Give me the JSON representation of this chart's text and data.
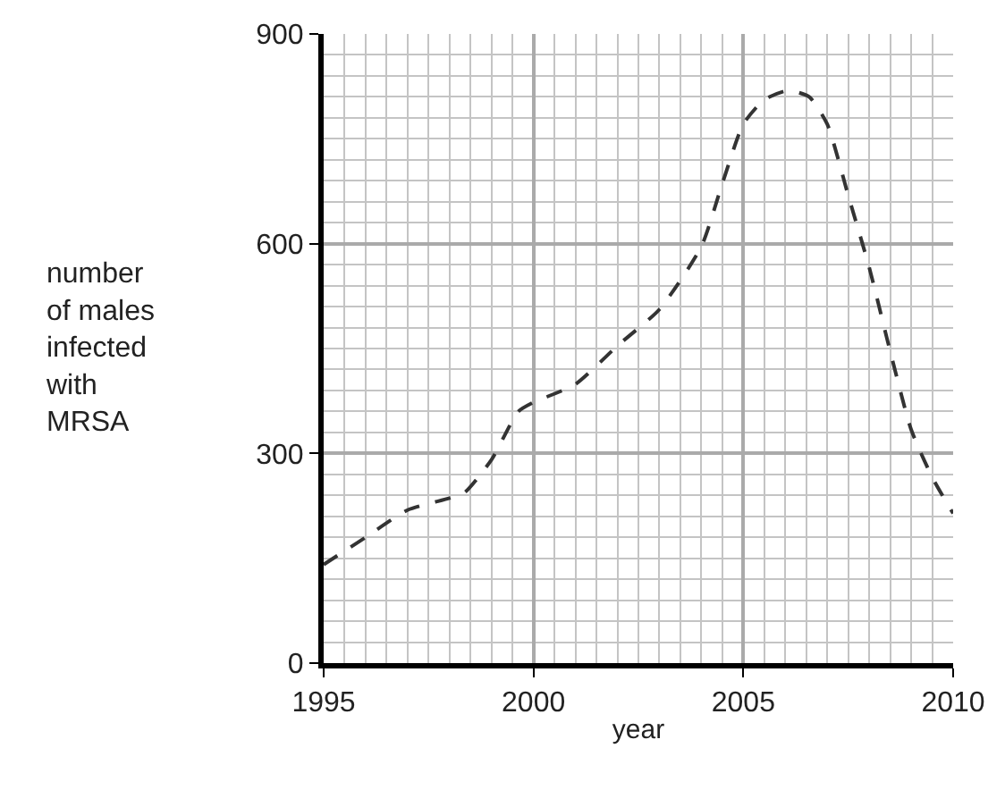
{
  "chart_data": {
    "type": "line",
    "xlabel": "year",
    "ylabel": "number of males infected with MRSA",
    "x": [
      1995,
      1996,
      1997,
      1998,
      1998.36,
      1999,
      1999.64,
      2000,
      2001,
      2002,
      2003,
      2004,
      2004.5,
      2005,
      2005.5,
      2006.07,
      2006.57,
      2007,
      2007.5,
      2008,
      2008.5,
      2009,
      2009.5,
      2010
    ],
    "series": [
      {
        "color": "#333333",
        "values": [
          141,
          180,
          219,
          236,
          244,
          291,
          360,
          373,
          399,
          454,
          506,
          596,
          686,
          771,
          806,
          819,
          810,
          771,
          669,
          566,
          446,
          334,
          266,
          214
        ]
      }
    ],
    "xlim": [
      1995,
      2010
    ],
    "xticks": [
      1995,
      2000,
      2005,
      2010
    ],
    "ylim": [
      0,
      900
    ],
    "yticks": [
      0,
      300,
      600,
      900
    ],
    "grid": true,
    "legend": false,
    "marker": "none",
    "line_style": "dashed"
  }
}
